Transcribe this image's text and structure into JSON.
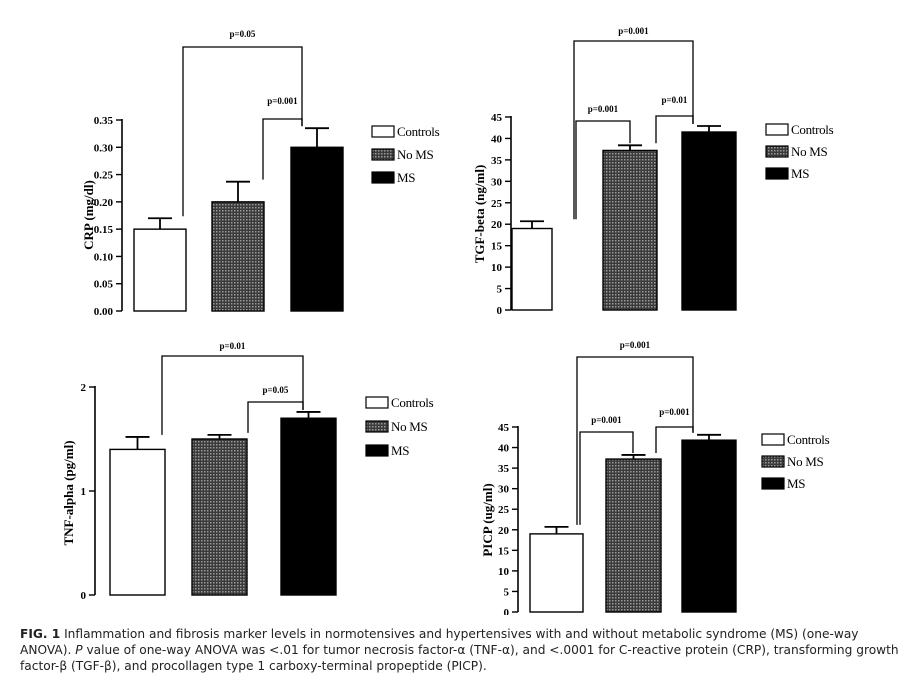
{
  "chart_data": [
    {
      "type": "bar",
      "id": "crp",
      "ylabel": "CRP (mg/dl)",
      "categories": [
        "Controls",
        "No MS",
        "MS"
      ],
      "values": [
        0.15,
        0.2,
        0.3
      ],
      "errors": [
        0.02,
        0.037,
        0.035
      ],
      "ylim": [
        0,
        0.35
      ],
      "yticks": [
        0,
        0.05,
        0.1,
        0.15,
        0.2,
        0.25,
        0.3,
        0.35
      ],
      "ytick_labels": [
        "0.00",
        "0.05",
        "0.10",
        "0.15",
        "0.20",
        "0.25",
        "0.30",
        "0.35"
      ],
      "legend": [
        "Controls",
        "No MS",
        "MS"
      ],
      "annotations": [
        {
          "from": 0,
          "to": 2,
          "label": "p=0.05"
        },
        {
          "from": 1,
          "to": 2,
          "label": "p=0.001"
        }
      ]
    },
    {
      "type": "bar",
      "id": "tgf",
      "ylabel": "TGF-beta (ng/ml)",
      "categories": [
        "Controls",
        "No MS",
        "MS"
      ],
      "values": [
        19,
        37.2,
        41.5
      ],
      "errors": [
        1.7,
        1.2,
        1.4
      ],
      "ylim": [
        0,
        45
      ],
      "yticks": [
        0,
        5,
        10,
        15,
        20,
        25,
        30,
        35,
        40,
        45
      ],
      "ytick_labels": [
        "0",
        "5",
        "10",
        "15",
        "20",
        "25",
        "30",
        "35",
        "40",
        "45"
      ],
      "legend": [
        "Controls",
        "No MS",
        "MS"
      ],
      "annotations": [
        {
          "from": 0,
          "to": 2,
          "label": "p=0.001"
        },
        {
          "from": 0,
          "to": 1,
          "label": "p=0.001"
        },
        {
          "from": 1,
          "to": 2,
          "label": "p=0.01"
        }
      ]
    },
    {
      "type": "bar",
      "id": "tnf",
      "ylabel": "TNF-alpha (pg/ml)",
      "categories": [
        "Controls",
        "No MS",
        "MS"
      ],
      "values": [
        1.4,
        1.5,
        1.7
      ],
      "errors": [
        0.12,
        0.04,
        0.06
      ],
      "ylim": [
        0,
        2
      ],
      "yticks": [
        0,
        1,
        2
      ],
      "ytick_labels": [
        "0",
        "1",
        "2"
      ],
      "legend": [
        "Controls",
        "No MS",
        "MS"
      ],
      "annotations": [
        {
          "from": 0,
          "to": 2,
          "label": "p=0.01"
        },
        {
          "from": 1,
          "to": 2,
          "label": "p=0.05"
        }
      ]
    },
    {
      "type": "bar",
      "id": "picp",
      "ylabel": "PICP (ug/ml)",
      "categories": [
        "Controls",
        "No MS",
        "MS"
      ],
      "values": [
        19,
        37.2,
        41.8
      ],
      "errors": [
        1.7,
        1.0,
        1.3
      ],
      "ylim": [
        0,
        45
      ],
      "yticks": [
        0,
        5,
        10,
        15,
        20,
        25,
        30,
        35,
        40,
        45
      ],
      "ytick_labels": [
        "0",
        "5",
        "10",
        "15",
        "20",
        "25",
        "30",
        "35",
        "40",
        "45"
      ],
      "legend": [
        "Controls",
        "No MS",
        "MS"
      ],
      "annotations": [
        {
          "from": 0,
          "to": 2,
          "label": "p=0.001"
        },
        {
          "from": 0,
          "to": 1,
          "label": "p=0.001"
        },
        {
          "from": 1,
          "to": 2,
          "label": "p=0.001"
        }
      ]
    }
  ],
  "caption": {
    "lead": "FIG. 1",
    "s1": " Inflammation and fibrosis marker levels in normotensives and hypertensives with and without metabolic syndrome (MS) (one-way ANOVA). ",
    "pvar": "P",
    "s2": " value of one-way ANOVA was <.01 for tumor necrosis factor-α (TNF-α), and <.0001 for C-reactive protein (CRP), transforming growth factor-β (TGF-β), and procollagen type 1 carboxy-terminal propeptide (PICP)."
  }
}
